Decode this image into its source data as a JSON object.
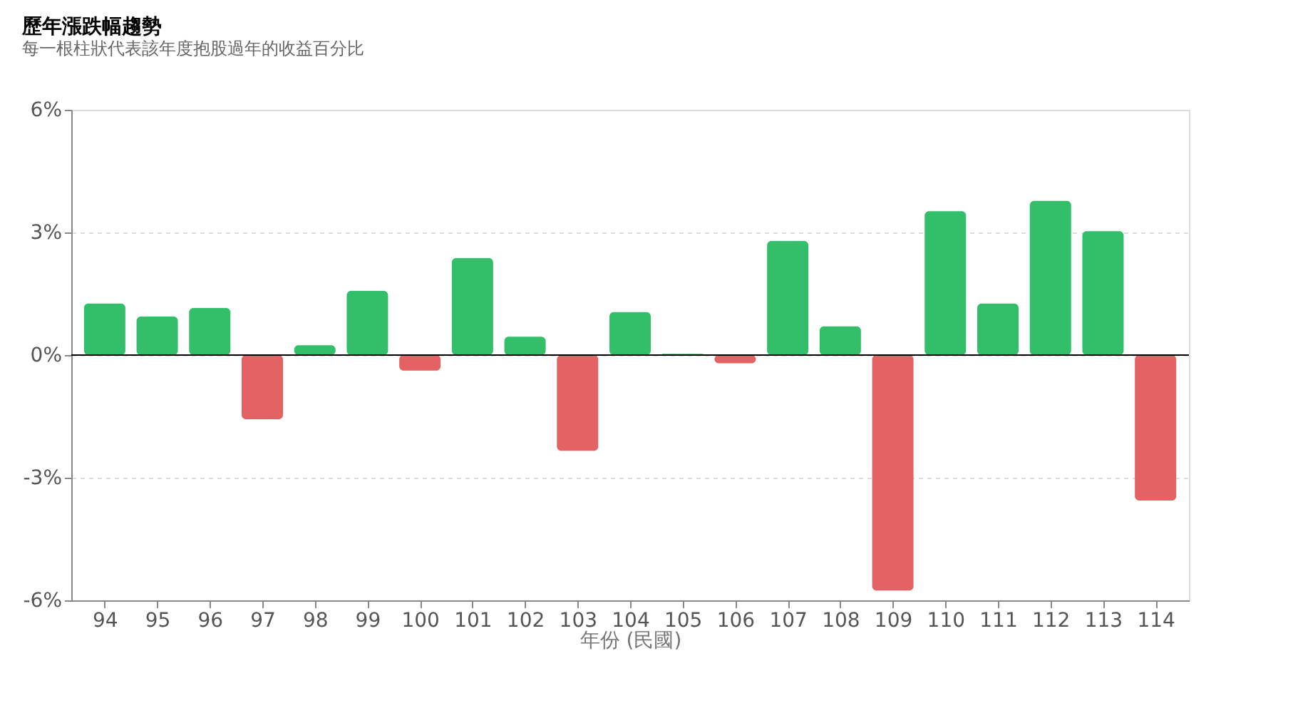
{
  "chart_data": {
    "type": "bar",
    "title": "歷年漲跌幅趨勢",
    "subtitle": "每一根柱狀代表該年度抱股過年的收益百分比",
    "xlabel": "年份 (民國)",
    "categories": [
      "94",
      "95",
      "96",
      "97",
      "98",
      "99",
      "100",
      "101",
      "102",
      "103",
      "104",
      "105",
      "106",
      "107",
      "108",
      "109",
      "110",
      "111",
      "112",
      "113",
      "114"
    ],
    "values": [
      1.26,
      0.94,
      1.15,
      -1.57,
      0.24,
      1.57,
      -0.38,
      2.37,
      0.45,
      -2.34,
      1.05,
      0.03,
      -0.2,
      2.79,
      0.7,
      -5.76,
      3.52,
      1.26,
      3.77,
      3.03,
      -3.56
    ],
    "colors": [
      "#33bf6a",
      "#33bf6a",
      "#33bf6a",
      "#e46264",
      "#33bf6a",
      "#33bf6a",
      "#e46264",
      "#33bf6a",
      "#33bf6a",
      "#e46264",
      "#33bf6a",
      "#33bf6a",
      "#e46264",
      "#33bf6a",
      "#33bf6a",
      "#e46264",
      "#33bf6a",
      "#33bf6a",
      "#33bf6a",
      "#33bf6a",
      "#e46264"
    ],
    "ylim": [
      -6,
      6
    ],
    "yticks": [
      {
        "value": -6,
        "label": "-6%"
      },
      {
        "value": -3,
        "label": "-3%"
      },
      {
        "value": 0,
        "label": "0%"
      },
      {
        "value": 3,
        "label": "3%"
      },
      {
        "value": 6,
        "label": "6%"
      }
    ],
    "grid": "y",
    "ref_lines": [
      {
        "axis": "y",
        "value": 0,
        "color": "#000000"
      }
    ]
  }
}
